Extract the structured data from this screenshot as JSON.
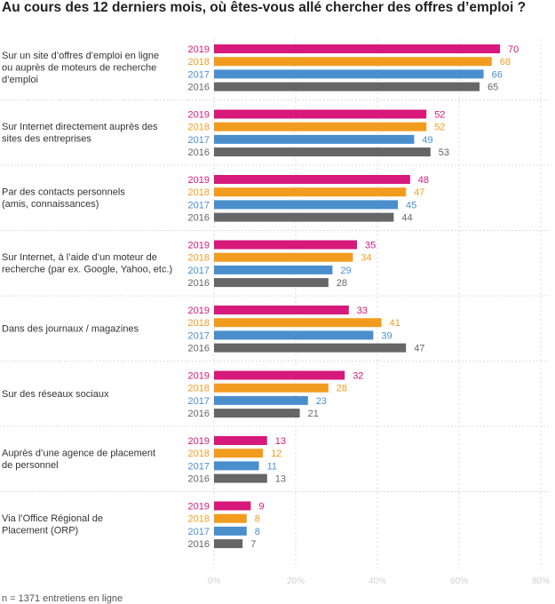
{
  "chart_data": {
    "type": "bar",
    "orientation": "horizontal",
    "title": "Au cours des 12 derniers mois, où êtes-vous allé chercher des offres d’emploi ?",
    "note": "n = 1371 entretiens en ligne",
    "xlim": [
      0,
      80
    ],
    "x_ticks": [
      "0%",
      "20%",
      "40%",
      "60%",
      "80%"
    ],
    "grid": true,
    "series_colors": {
      "2019": "#d6197a",
      "2018": "#f29c1f",
      "2017": "#4a8fcc",
      "2016": "#666666"
    },
    "categories": [
      {
        "label_lines": [
          "Sur un site d’offres d’emploi en ligne",
          "ou auprès de moteurs de recherche",
          "d’emploi"
        ],
        "bars": [
          {
            "year": "2019",
            "value": 70
          },
          {
            "year": "2018",
            "value": 68
          },
          {
            "year": "2017",
            "value": 66
          },
          {
            "year": "2016",
            "value": 65
          }
        ]
      },
      {
        "label_lines": [
          "Sur Internet directement auprès des",
          "sites des entreprises"
        ],
        "bars": [
          {
            "year": "2019",
            "value": 52
          },
          {
            "year": "2018",
            "value": 52
          },
          {
            "year": "2017",
            "value": 49
          },
          {
            "year": "2016",
            "value": 53
          }
        ]
      },
      {
        "label_lines": [
          "Par des contacts personnels",
          "(amis, connaissances)"
        ],
        "bars": [
          {
            "year": "2019",
            "value": 48
          },
          {
            "year": "2018",
            "value": 47
          },
          {
            "year": "2017",
            "value": 45
          },
          {
            "year": "2016",
            "value": 44
          }
        ]
      },
      {
        "label_lines": [
          "Sur Internet, à l’aide d’un moteur de",
          "recherche (par ex. Google, Yahoo, etc.)"
        ],
        "bars": [
          {
            "year": "2019",
            "value": 35
          },
          {
            "year": "2018",
            "value": 34
          },
          {
            "year": "2017",
            "value": 29
          },
          {
            "year": "2016",
            "value": 28
          }
        ]
      },
      {
        "label_lines": [
          "Dans des journaux / magazines"
        ],
        "bars": [
          {
            "year": "2019",
            "value": 33
          },
          {
            "year": "2018",
            "value": 41
          },
          {
            "year": "2017",
            "value": 39
          },
          {
            "year": "2016",
            "value": 47
          }
        ]
      },
      {
        "label_lines": [
          "Sur des réseaux sociaux"
        ],
        "bars": [
          {
            "year": "2019",
            "value": 32
          },
          {
            "year": "2018",
            "value": 28
          },
          {
            "year": "2017",
            "value": 23
          },
          {
            "year": "2016",
            "value": 21
          }
        ]
      },
      {
        "label_lines": [
          "Auprès d’une agence de placement",
          "de personnel"
        ],
        "bars": [
          {
            "year": "2019",
            "value": 13
          },
          {
            "year": "2018",
            "value": 12
          },
          {
            "year": "2017",
            "value": 11
          },
          {
            "year": "2016",
            "value": 13
          }
        ]
      },
      {
        "label_lines": [
          "Via l’Office Régional de",
          "Placement (ORP)"
        ],
        "bars": [
          {
            "year": "2019",
            "value": 9
          },
          {
            "year": "2018",
            "value": 8
          },
          {
            "year": "2017",
            "value": 8
          },
          {
            "year": "2016",
            "value": 7
          }
        ]
      }
    ]
  }
}
